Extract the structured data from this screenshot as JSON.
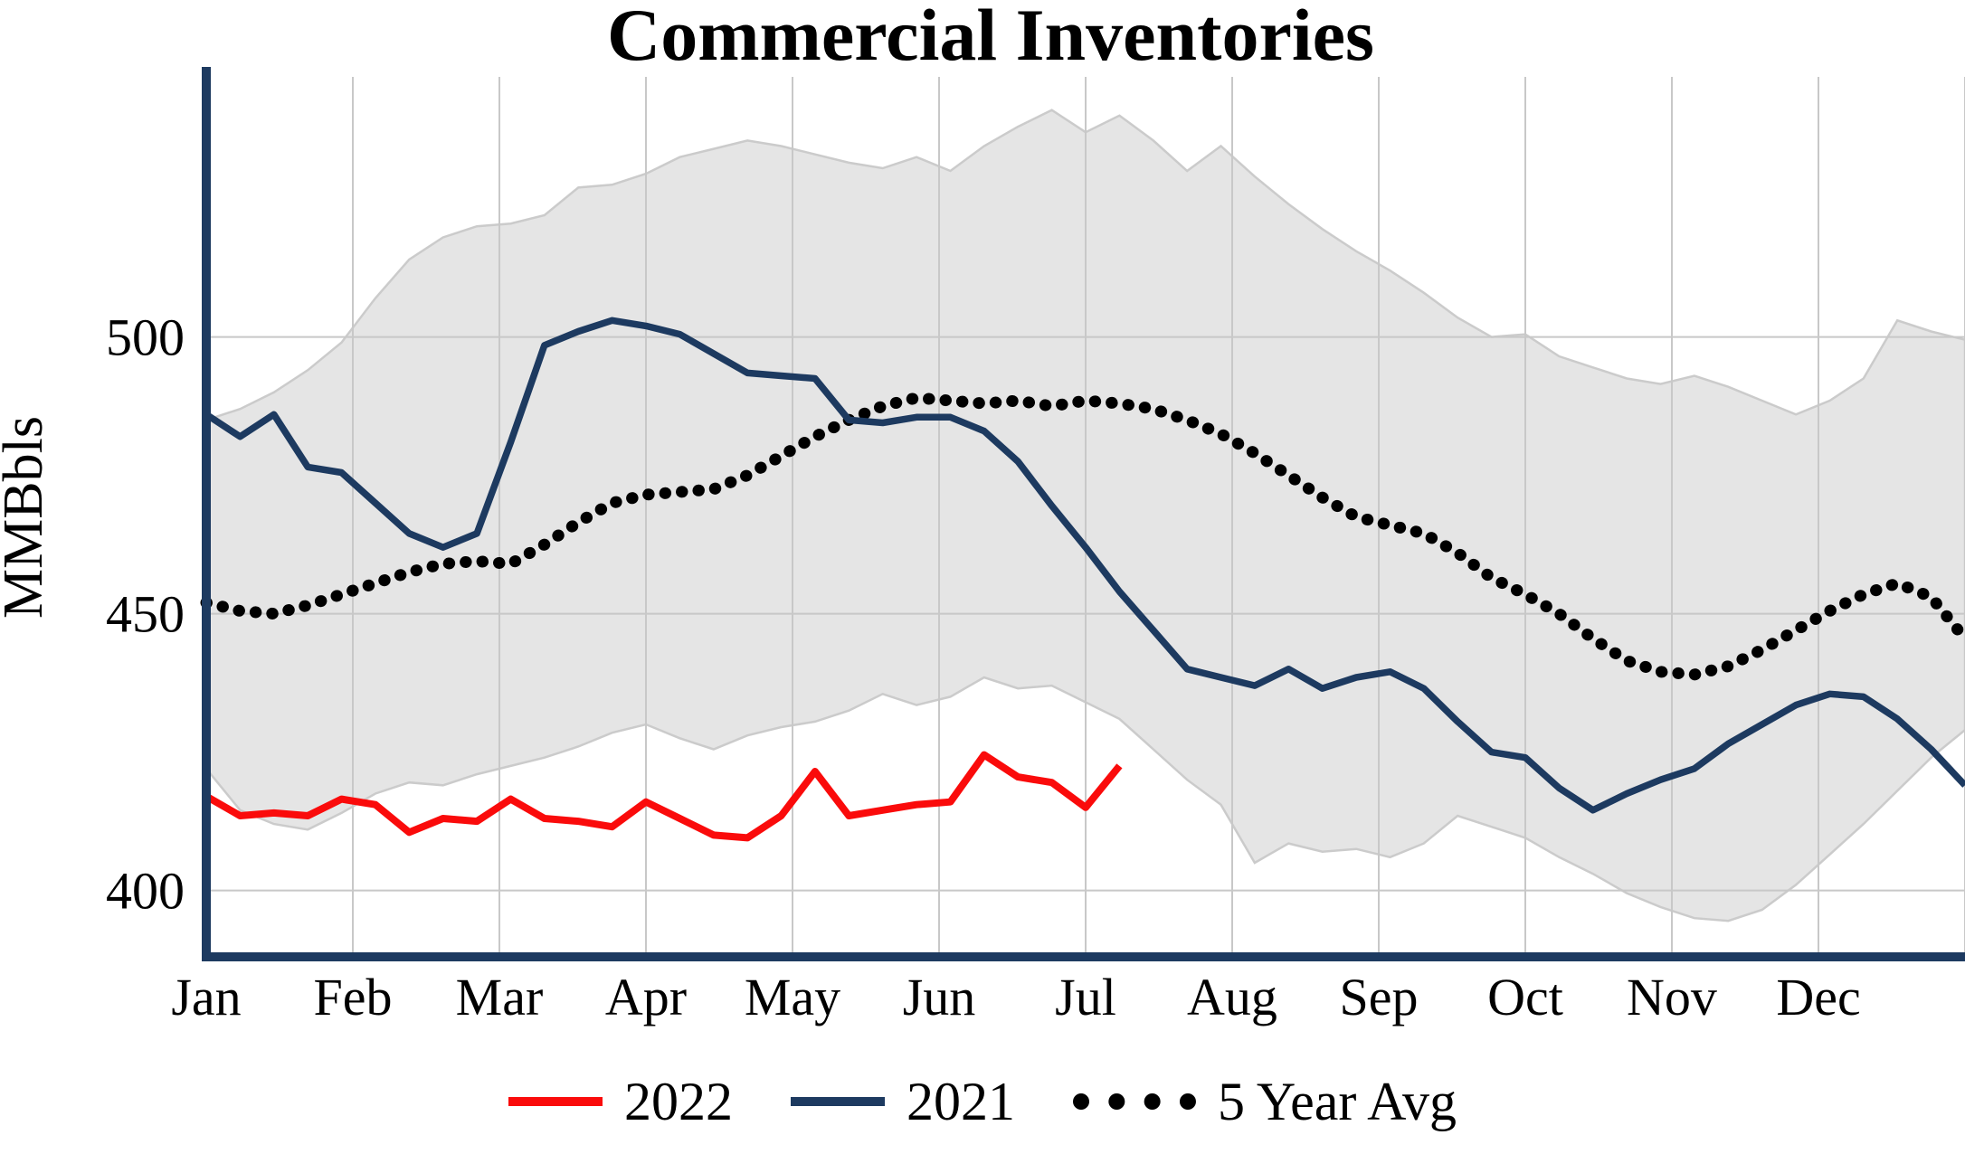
{
  "chart_data": {
    "type": "line",
    "title": "Commercial Inventories",
    "ylabel": "MMBbls",
    "xlabel": "",
    "categories_months": [
      "Jan",
      "Feb",
      "Mar",
      "Apr",
      "May",
      "Jun",
      "Jul",
      "Aug",
      "Sep",
      "Oct",
      "Nov",
      "Dec"
    ],
    "y_ticks": [
      400,
      450,
      500
    ],
    "ylim": [
      388,
      547
    ],
    "x_unit": "week",
    "weeks_per_year": 52,
    "grid": "on",
    "grid_color": "#c8c8c8",
    "axis_color": "#1d3a60",
    "legend_position": "bottom-center",
    "band": {
      "name": "5 Year Range",
      "fill": "#e5e5e5",
      "edge": "#cbcbcb",
      "upper": [
        485,
        487,
        490,
        494,
        499,
        507,
        514,
        518,
        520,
        520.5,
        522,
        527,
        527.5,
        529.5,
        532.5,
        534,
        535.5,
        534.5,
        533,
        531.5,
        530.5,
        532.5,
        530,
        534.5,
        538,
        541,
        537,
        540,
        535.5,
        530,
        534.5,
        529,
        524,
        519.5,
        515.5,
        512,
        508,
        503.5,
        500,
        500.5,
        496.5,
        494.5,
        492.5,
        491.5,
        493,
        491,
        488.5,
        486,
        488.5,
        492.5,
        503,
        501,
        499.5
      ],
      "lower": [
        422,
        414.5,
        412,
        411,
        414,
        417.5,
        419.5,
        419,
        421,
        422.5,
        424,
        426,
        428.5,
        430,
        427.5,
        425.5,
        428,
        429.5,
        430.5,
        432.5,
        435.5,
        433.5,
        435,
        438.5,
        436.5,
        437,
        434,
        431,
        425.5,
        420,
        415.5,
        405,
        408.5,
        407,
        407.5,
        406,
        408.5,
        413.5,
        411.5,
        409.5,
        406,
        403,
        399.5,
        397,
        395,
        394.5,
        396.5,
        401,
        406.5,
        412,
        418,
        424,
        429
      ]
    },
    "series": [
      {
        "name": "2022",
        "color": "#fa0b0b",
        "style": "solid",
        "start_week": 0,
        "values": [
          417,
          413.5,
          414,
          413.5,
          416.5,
          415.5,
          410.5,
          413,
          412.5,
          416.5,
          413,
          412.5,
          411.5,
          416,
          413,
          410,
          409.5,
          413.5,
          421.5,
          413.5,
          414.5,
          415.5,
          416,
          424.5,
          420.5,
          419.5,
          415,
          422.5
        ]
      },
      {
        "name": "2021",
        "color": "#1d3a60",
        "style": "solid",
        "start_week": 0,
        "values": [
          486,
          482,
          486,
          476.5,
          475.5,
          470,
          464.5,
          462,
          464.5,
          481,
          498.5,
          501,
          503,
          502,
          500.5,
          497,
          493.5,
          493,
          492.5,
          485,
          484.5,
          485.5,
          485.5,
          483,
          477.5,
          469.5,
          462,
          454,
          447,
          440,
          438.5,
          437,
          440,
          436.5,
          438.5,
          439.5,
          436.5,
          430.5,
          425,
          424,
          418.5,
          414.5,
          417.5,
          420,
          422,
          426.5,
          430,
          433.5,
          435.5,
          435,
          431,
          425.5,
          419
        ]
      },
      {
        "name": "5 Year Avg",
        "color": "#000000",
        "style": "dotted",
        "start_week": 0,
        "values": [
          452,
          450.5,
          450,
          451.5,
          453.5,
          455.5,
          457.5,
          459,
          459.5,
          459,
          462.5,
          466.5,
          470,
          471.5,
          472,
          472.5,
          475,
          478.5,
          482,
          485,
          487.5,
          489,
          488.5,
          488,
          488.5,
          487.5,
          488.5,
          488,
          487,
          485,
          482.5,
          479,
          475,
          471,
          467.5,
          466,
          464.5,
          461,
          456.5,
          453.5,
          450,
          445.5,
          441.5,
          439.5,
          439,
          440.5,
          443.5,
          447,
          450.5,
          453.5,
          455.5,
          453,
          445.5
        ]
      }
    ],
    "legend": [
      "2022",
      "2021",
      "5 Year Avg"
    ]
  }
}
